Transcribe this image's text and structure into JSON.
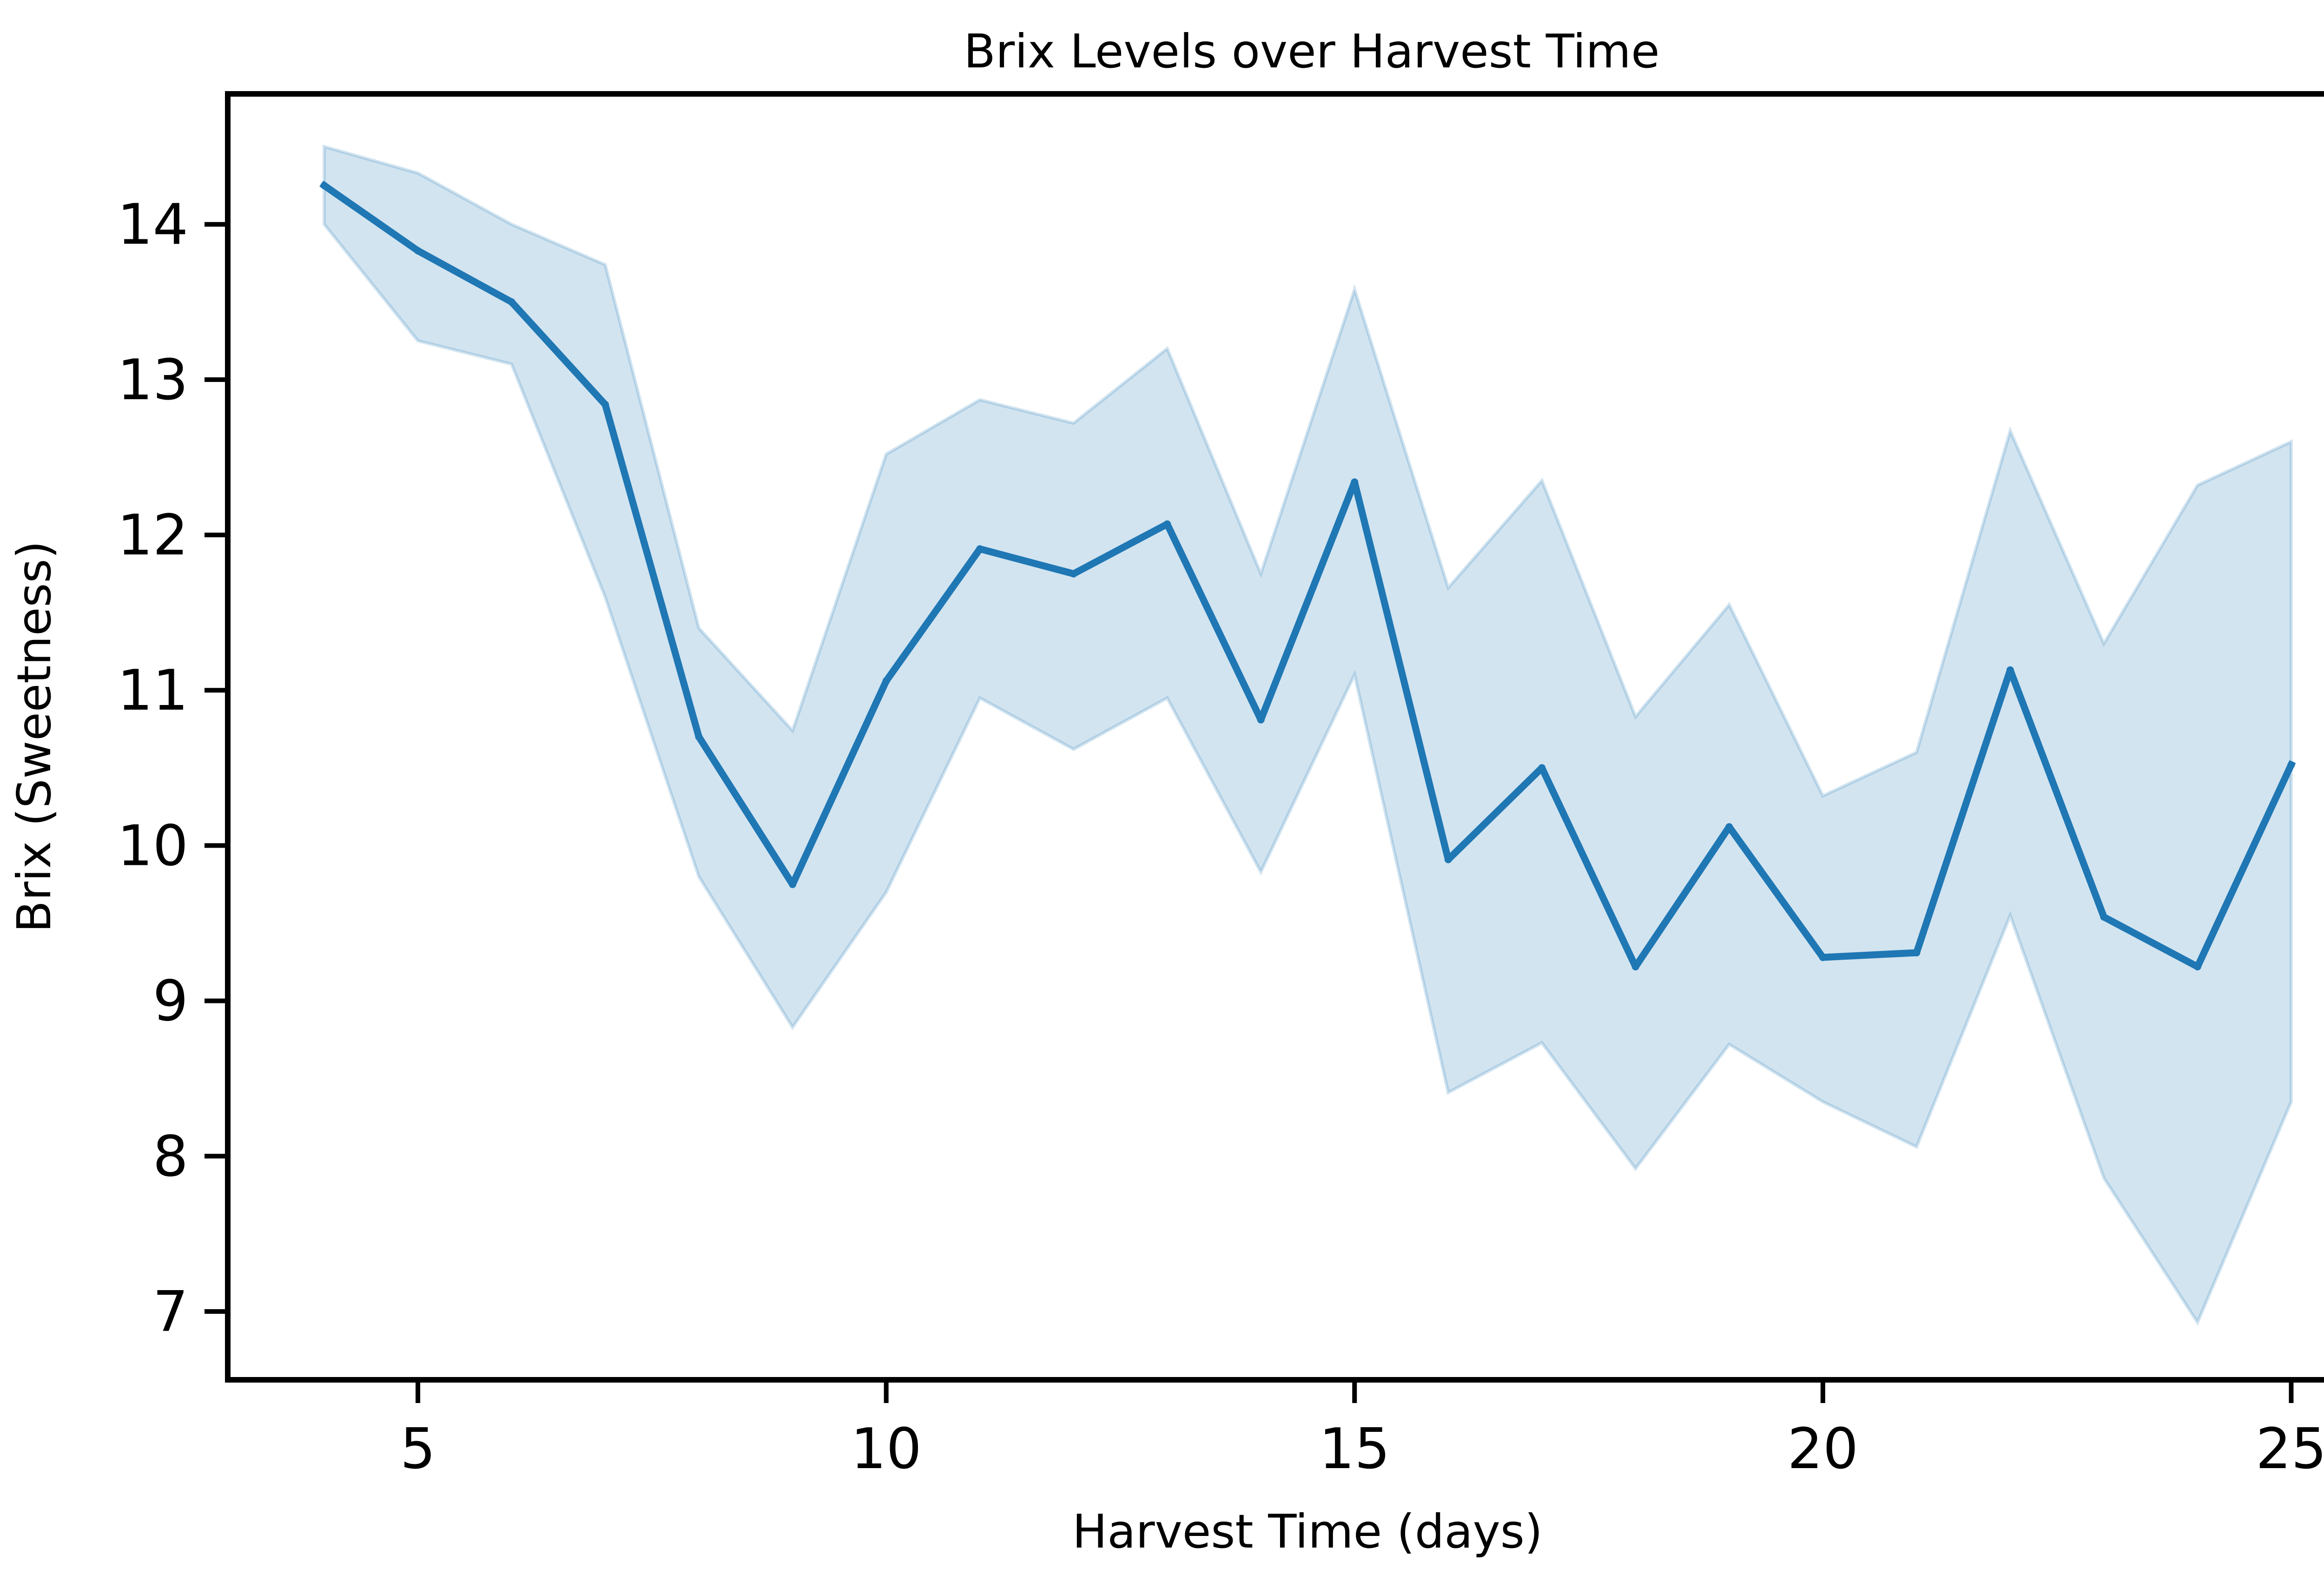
{
  "chart_data": {
    "type": "line",
    "title": "Brix Levels over Harvest Time",
    "xlabel": "Harvest Time (days)",
    "ylabel": "Brix (Sweetness)",
    "xlim": [
      2.97,
      26.03
    ],
    "ylim": [
      6.56,
      14.84
    ],
    "xticks": [
      5,
      10,
      15,
      20,
      25
    ],
    "yticks": [
      7,
      8,
      9,
      10,
      11,
      12,
      13,
      14
    ],
    "grid": false,
    "legend": "none",
    "colors": {
      "line": "#1f77b4",
      "band": "#1f77b4"
    },
    "series": [
      {
        "x": [
          4,
          5,
          6,
          7,
          8,
          9,
          10,
          11,
          12,
          13,
          14,
          15,
          16,
          17,
          18,
          19,
          20,
          21,
          22,
          23,
          24,
          25
        ],
        "values": [
          14.25,
          13.83,
          13.5,
          12.84,
          10.7,
          9.75,
          11.06,
          11.91,
          11.75,
          12.07,
          10.81,
          12.34,
          9.91,
          10.5,
          9.22,
          10.12,
          9.28,
          9.31,
          11.13,
          9.54,
          9.22,
          10.52
        ],
        "ci_lower": [
          14.0,
          13.25,
          13.1,
          11.6,
          9.8,
          8.83,
          9.7,
          10.95,
          10.62,
          10.95,
          9.83,
          11.1,
          8.41,
          8.73,
          7.92,
          8.72,
          8.35,
          8.06,
          9.55,
          7.86,
          6.93,
          8.35
        ],
        "ci_upper": [
          14.5,
          14.33,
          14.0,
          13.74,
          11.4,
          10.74,
          12.52,
          12.87,
          12.72,
          13.2,
          11.75,
          13.58,
          11.66,
          12.35,
          10.83,
          11.55,
          10.32,
          10.6,
          12.67,
          11.3,
          12.32,
          12.6
        ]
      }
    ]
  }
}
